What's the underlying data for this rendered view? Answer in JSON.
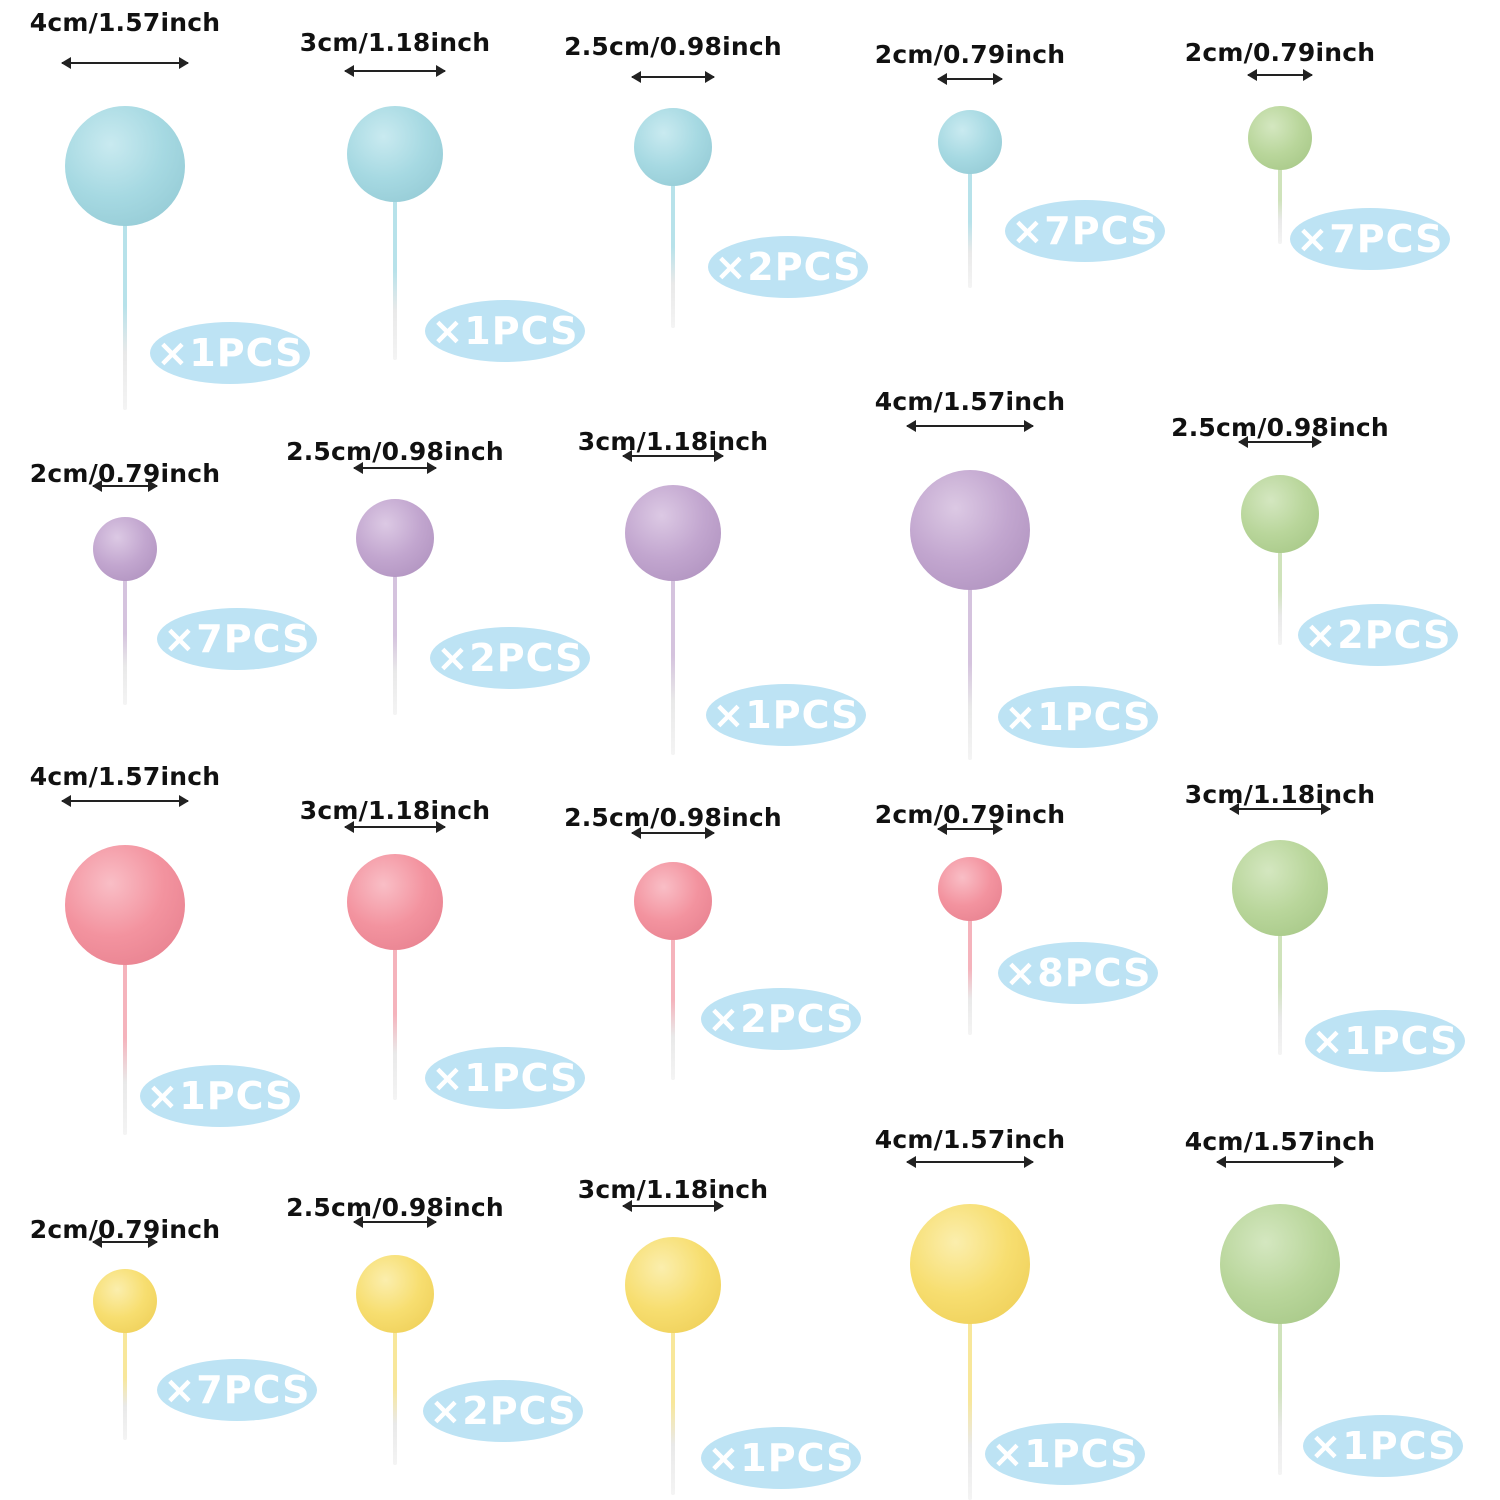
{
  "colors": {
    "blue": {
      "base": "#a6d9e2",
      "hl": "#c9eaf0",
      "shd": "#8fc6d1",
      "stick": "#b7e2ea"
    },
    "purple": {
      "base": "#c2a6cf",
      "hl": "#dcc9e4",
      "shd": "#ab8dbb",
      "stick": "#d5c3de"
    },
    "pink": {
      "base": "#f3939f",
      "hl": "#f9bec6",
      "shd": "#e47c8b",
      "stick": "#f5b3bc"
    },
    "yellow": {
      "base": "#f7de70",
      "hl": "#fbee ad",
      "shd": "#eccb52",
      "stick": "#f8e79a"
    },
    "green": {
      "base": "#b9d69b",
      "hl": "#d4e7c0",
      "shd": "#a2c482",
      "stick": "#cfe3bb"
    },
    "badge": "#bde3f4"
  },
  "items": [
    {
      "label": "4cm/1.57inch",
      "qty": "×1PCS",
      "color": "blue",
      "size_cm": 4
    },
    {
      "label": "3cm/1.18inch",
      "qty": "×1PCS",
      "color": "blue",
      "size_cm": 3
    },
    {
      "label": "2.5cm/0.98inch",
      "qty": "×2PCS",
      "color": "blue",
      "size_cm": 2.5
    },
    {
      "label": "2cm/0.79inch",
      "qty": "×7PCS",
      "color": "blue",
      "size_cm": 2
    },
    {
      "label": "2cm/0.79inch",
      "qty": "×7PCS",
      "color": "green",
      "size_cm": 2
    },
    {
      "label": "2cm/0.79inch",
      "qty": "×7PCS",
      "color": "purple",
      "size_cm": 2
    },
    {
      "label": "2.5cm/0.98inch",
      "qty": "×2PCS",
      "color": "purple",
      "size_cm": 2.5
    },
    {
      "label": "3cm/1.18inch",
      "qty": "×1PCS",
      "color": "purple",
      "size_cm": 3
    },
    {
      "label": "4cm/1.57inch",
      "qty": "×1PCS",
      "color": "purple",
      "size_cm": 4
    },
    {
      "label": "2.5cm/0.98inch",
      "qty": "×2PCS",
      "color": "green",
      "size_cm": 2.5
    },
    {
      "label": "4cm/1.57inch",
      "qty": "×1PCS",
      "color": "pink",
      "size_cm": 4
    },
    {
      "label": "3cm/1.18inch",
      "qty": "×1PCS",
      "color": "pink",
      "size_cm": 3
    },
    {
      "label": "2.5cm/0.98inch",
      "qty": "×2PCS",
      "color": "pink",
      "size_cm": 2.5
    },
    {
      "label": "2cm/0.79inch",
      "qty": "×8PCS",
      "color": "pink",
      "size_cm": 2
    },
    {
      "label": "3cm/1.18inch",
      "qty": "×1PCS",
      "color": "green",
      "size_cm": 3
    },
    {
      "label": "2cm/0.79inch",
      "qty": "×7PCS",
      "color": "yellow",
      "size_cm": 2
    },
    {
      "label": "2.5cm/0.98inch",
      "qty": "×2PCS",
      "color": "yellow",
      "size_cm": 2.5
    },
    {
      "label": "3cm/1.18inch",
      "qty": "×1PCS",
      "color": "yellow",
      "size_cm": 3
    },
    {
      "label": "4cm/1.57inch",
      "qty": "×1PCS",
      "color": "yellow",
      "size_cm": 4
    },
    {
      "label": "4cm/1.57inch",
      "qty": "×1PCS",
      "color": "green",
      "size_cm": 4
    }
  ]
}
